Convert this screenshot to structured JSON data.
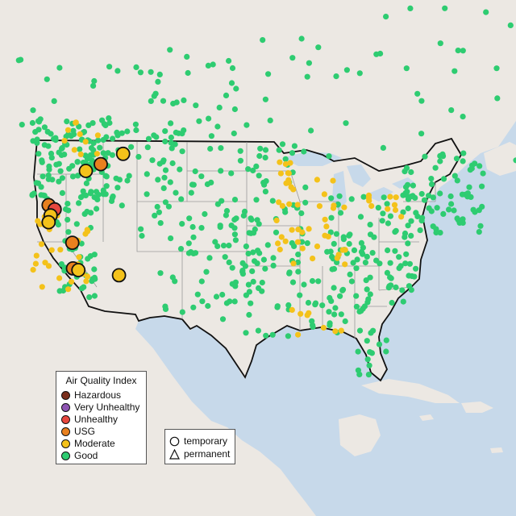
{
  "colors": {
    "ocean": "#c7d9ea",
    "land": "#ece8e3",
    "land_warm": "#e9dcd6",
    "border": "#111111",
    "state_line": "#9a9a9a"
  },
  "legend": {
    "title": "Air Quality Index",
    "items": [
      {
        "label": "Hazardous",
        "color": "#7a2e1c"
      },
      {
        "label": "Very Unhealthy",
        "color": "#8e55b3"
      },
      {
        "label": "Unhealthy",
        "color": "#e8473e"
      },
      {
        "label": "USG",
        "color": "#e8801f"
      },
      {
        "label": "Moderate",
        "color": "#f4c21a"
      },
      {
        "label": "Good",
        "color": "#2ecc71"
      }
    ]
  },
  "shape_legend": {
    "items": [
      {
        "label": "temporary",
        "icon": "circle-icon"
      },
      {
        "label": "permanent",
        "icon": "triangle-icon"
      }
    ]
  },
  "map_layers": {
    "large_stations": [
      {
        "category": "Moderate",
        "lon": -111.3,
        "lat": 47.6
      },
      {
        "category": "USG",
        "lon": -114.6,
        "lat": 46.4
      },
      {
        "category": "Moderate",
        "lon": -116.8,
        "lat": 45.6
      },
      {
        "category": "USG",
        "lon": -122.3,
        "lat": 41.6
      },
      {
        "category": "Unhealthy",
        "lon": -121.4,
        "lat": 41.1
      },
      {
        "category": "Moderate",
        "lon": -122.0,
        "lat": 40.4
      },
      {
        "category": "Moderate",
        "lon": -122.3,
        "lat": 39.6
      },
      {
        "category": "USG",
        "lon": -118.8,
        "lat": 37.2
      },
      {
        "category": "USG",
        "lon": -118.7,
        "lat": 34.2
      },
      {
        "category": "Moderate",
        "lon": -117.9,
        "lat": 34.0
      },
      {
        "category": "Moderate",
        "lon": -111.9,
        "lat": 33.4
      }
    ]
  }
}
